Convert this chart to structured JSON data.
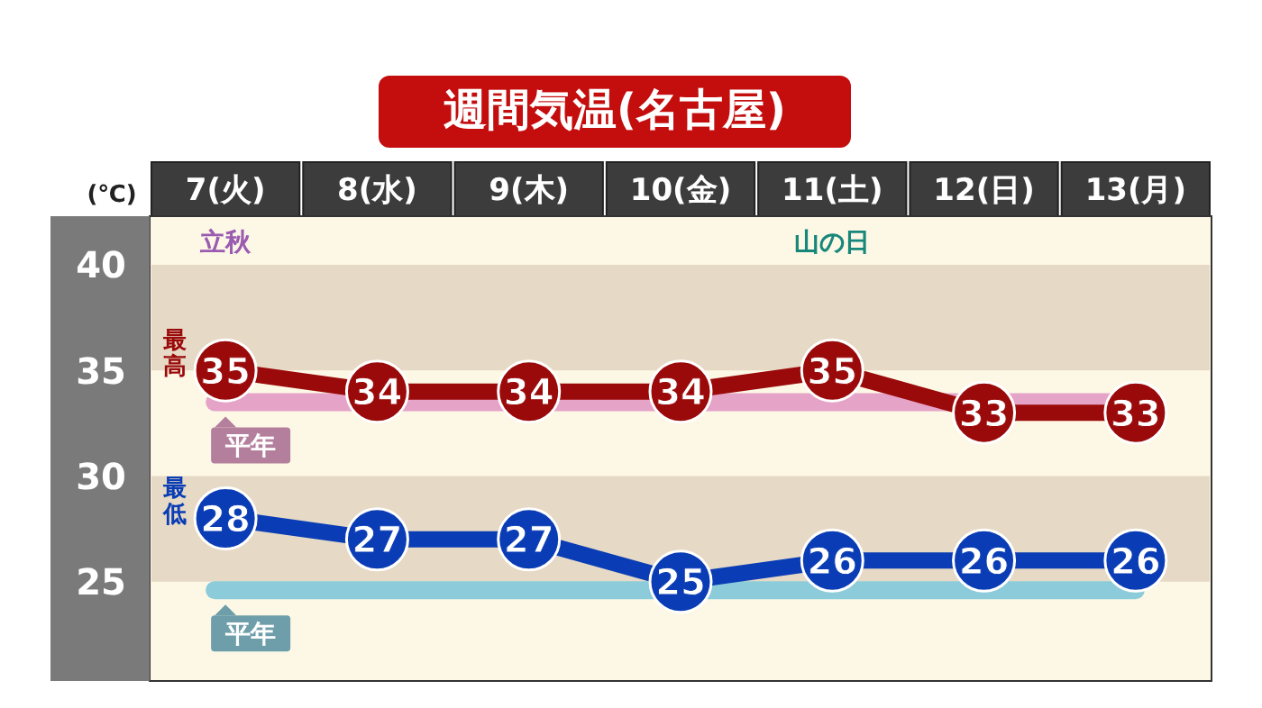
{
  "chart_data": {
    "type": "line",
    "title": "週間気温(名古屋)",
    "ylabel": "(℃)",
    "categories": [
      "7(火)",
      "8(水)",
      "9(木)",
      "10(金)",
      "11(土)",
      "12(日)",
      "13(月)"
    ],
    "series": [
      {
        "name": "最高",
        "color": "#9b0a0a",
        "values": [
          35,
          34,
          34,
          34,
          35,
          33,
          33
        ]
      },
      {
        "name": "最低",
        "color": "#0a3db5",
        "values": [
          28,
          27,
          27,
          25,
          26,
          26,
          26
        ]
      }
    ],
    "ylim": [
      20.3,
      42.3
    ],
    "yticks": [
      25,
      30,
      35,
      40
    ],
    "grid": false,
    "marker": "circle",
    "data_labels": true,
    "bands": [
      {
        "axis": "y",
        "from": 35,
        "to": 40,
        "color": "#e6d9c5"
      },
      {
        "axis": "y",
        "from": 25,
        "to": 30,
        "color": "#e6d9c5"
      }
    ],
    "ref_lines": [
      {
        "axis": "y",
        "value": 33.5,
        "label": "平年",
        "color": "#e6a3c8"
      },
      {
        "axis": "y",
        "value": 24.6,
        "label": "平年",
        "color": "#8ccbd9"
      }
    ],
    "annotations": [
      "立秋",
      "山の日"
    ]
  }
}
